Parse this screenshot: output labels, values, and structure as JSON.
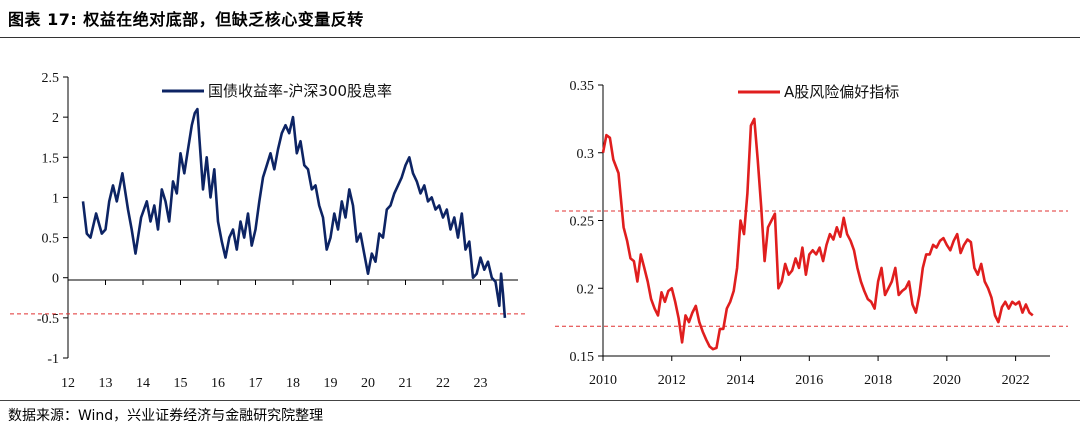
{
  "header": {
    "title": "图表 17:  权益在绝对底部，但缺乏核心变量反转"
  },
  "footer": {
    "source": "数据来源：Wind，兴业证券经济与金融研究院整理"
  },
  "colors": {
    "left_series": "#0d2464",
    "right_series": "#e01e1e",
    "reference_line": "#e03030",
    "axis": "#000000"
  },
  "chart_data": [
    {
      "type": "line",
      "title": "",
      "xlabel": "",
      "ylabel": "",
      "legend": "top-center",
      "grid": false,
      "xlim": [
        12,
        24
      ],
      "ylim": [
        -1,
        2.5
      ],
      "x_ticks": [
        "12",
        "13",
        "14",
        "15",
        "16",
        "17",
        "18",
        "19",
        "20",
        "21",
        "22",
        "23"
      ],
      "y_ticks": [
        "-1",
        "-0.5",
        "0",
        "0.5",
        "1",
        "1.5",
        "2",
        "2.5"
      ],
      "reference_lines": [
        {
          "y": -0.45
        }
      ],
      "series": [
        {
          "name": "国债收益率-沪深300股息率",
          "x": [
            12.4,
            12.5,
            12.6,
            12.75,
            12.9,
            13.0,
            13.1,
            13.2,
            13.3,
            13.45,
            13.6,
            13.7,
            13.8,
            13.95,
            14.1,
            14.2,
            14.3,
            14.4,
            14.5,
            14.6,
            14.7,
            14.8,
            14.9,
            15.0,
            15.1,
            15.2,
            15.3,
            15.38,
            15.45,
            15.5,
            15.6,
            15.7,
            15.8,
            15.9,
            16.0,
            16.1,
            16.2,
            16.3,
            16.4,
            16.5,
            16.6,
            16.7,
            16.8,
            16.9,
            17.0,
            17.1,
            17.2,
            17.3,
            17.4,
            17.5,
            17.6,
            17.7,
            17.8,
            17.9,
            18.0,
            18.1,
            18.2,
            18.3,
            18.4,
            18.5,
            18.6,
            18.7,
            18.8,
            18.9,
            19.0,
            19.1,
            19.2,
            19.3,
            19.4,
            19.5,
            19.6,
            19.7,
            19.8,
            19.9,
            20.0,
            20.1,
            20.2,
            20.3,
            20.4,
            20.5,
            20.6,
            20.7,
            20.8,
            20.9,
            21.0,
            21.1,
            21.2,
            21.3,
            21.4,
            21.5,
            21.6,
            21.7,
            21.8,
            21.9,
            22.0,
            22.1,
            22.2,
            22.3,
            22.4,
            22.5,
            22.6,
            22.7,
            22.8,
            22.9,
            23.0,
            23.1,
            23.2,
            23.3,
            23.4,
            23.5,
            23.55,
            23.6,
            23.65
          ],
          "values": [
            0.95,
            0.55,
            0.5,
            0.8,
            0.55,
            0.6,
            0.95,
            1.15,
            0.95,
            1.3,
            0.85,
            0.6,
            0.3,
            0.75,
            0.95,
            0.7,
            0.9,
            0.6,
            1.1,
            0.95,
            0.7,
            1.2,
            1.05,
            1.55,
            1.3,
            1.6,
            1.9,
            2.05,
            2.1,
            1.75,
            1.1,
            1.5,
            1.0,
            1.35,
            0.7,
            0.45,
            0.25,
            0.5,
            0.6,
            0.35,
            0.7,
            0.5,
            0.8,
            0.4,
            0.6,
            0.95,
            1.25,
            1.4,
            1.55,
            1.35,
            1.6,
            1.8,
            1.9,
            1.8,
            2.0,
            1.55,
            1.7,
            1.4,
            1.35,
            1.1,
            1.15,
            0.9,
            0.75,
            0.35,
            0.5,
            0.8,
            0.6,
            0.95,
            0.75,
            1.1,
            0.9,
            0.45,
            0.55,
            0.3,
            0.05,
            0.3,
            0.2,
            0.55,
            0.5,
            0.85,
            0.9,
            1.05,
            1.15,
            1.25,
            1.4,
            1.5,
            1.3,
            1.2,
            1.05,
            1.15,
            0.95,
            1.0,
            0.85,
            0.9,
            0.75,
            0.85,
            0.6,
            0.75,
            0.5,
            0.8,
            0.35,
            0.45,
            0.0,
            0.05,
            0.25,
            0.1,
            0.2,
            0.0,
            -0.05,
            -0.35,
            0.05,
            -0.2,
            -0.5
          ]
        }
      ]
    },
    {
      "type": "line",
      "title": "",
      "xlabel": "",
      "ylabel": "",
      "legend": "top-center",
      "grid": false,
      "xlim": [
        2010,
        2023
      ],
      "ylim": [
        0.15,
        0.35
      ],
      "x_ticks": [
        "2010",
        "2012",
        "2014",
        "2016",
        "2018",
        "2020",
        "2022"
      ],
      "y_ticks": [
        "0.15",
        "0.2",
        "0.25",
        "0.3",
        "0.35"
      ],
      "reference_lines": [
        {
          "y": 0.257
        },
        {
          "y": 0.172
        }
      ],
      "series": [
        {
          "name": "A股风险偏好指标",
          "x": [
            2010.0,
            2010.1,
            2010.2,
            2010.3,
            2010.45,
            2010.6,
            2010.7,
            2010.8,
            2010.9,
            2011.0,
            2011.1,
            2011.2,
            2011.3,
            2011.4,
            2011.5,
            2011.6,
            2011.7,
            2011.8,
            2011.9,
            2012.0,
            2012.1,
            2012.2,
            2012.3,
            2012.4,
            2012.5,
            2012.6,
            2012.7,
            2012.8,
            2012.9,
            2013.0,
            2013.1,
            2013.2,
            2013.3,
            2013.4,
            2013.5,
            2013.6,
            2013.7,
            2013.8,
            2013.9,
            2014.0,
            2014.1,
            2014.2,
            2014.3,
            2014.4,
            2014.5,
            2014.6,
            2014.7,
            2014.8,
            2014.9,
            2015.0,
            2015.1,
            2015.2,
            2015.3,
            2015.4,
            2015.5,
            2015.6,
            2015.7,
            2015.8,
            2015.9,
            2016.0,
            2016.1,
            2016.2,
            2016.3,
            2016.4,
            2016.5,
            2016.6,
            2016.7,
            2016.8,
            2016.9,
            2017.0,
            2017.1,
            2017.2,
            2017.3,
            2017.4,
            2017.5,
            2017.6,
            2017.7,
            2017.8,
            2017.9,
            2018.0,
            2018.1,
            2018.2,
            2018.3,
            2018.4,
            2018.5,
            2018.6,
            2018.7,
            2018.8,
            2018.9,
            2019.0,
            2019.1,
            2019.2,
            2019.3,
            2019.4,
            2019.5,
            2019.6,
            2019.7,
            2019.8,
            2019.9,
            2020.0,
            2020.1,
            2020.2,
            2020.3,
            2020.4,
            2020.5,
            2020.6,
            2020.7,
            2020.8,
            2020.9,
            2021.0,
            2021.1,
            2021.2,
            2021.3,
            2021.4,
            2021.5,
            2021.6,
            2021.7,
            2021.8,
            2021.9,
            2022.0,
            2022.1,
            2022.2,
            2022.3,
            2022.4,
            2022.5
          ],
          "values": [
            0.3,
            0.313,
            0.311,
            0.295,
            0.285,
            0.245,
            0.235,
            0.222,
            0.22,
            0.205,
            0.225,
            0.215,
            0.205,
            0.192,
            0.185,
            0.18,
            0.197,
            0.19,
            0.198,
            0.2,
            0.19,
            0.178,
            0.16,
            0.18,
            0.175,
            0.182,
            0.187,
            0.175,
            0.168,
            0.162,
            0.157,
            0.155,
            0.156,
            0.17,
            0.17,
            0.185,
            0.19,
            0.198,
            0.215,
            0.25,
            0.24,
            0.27,
            0.32,
            0.325,
            0.295,
            0.26,
            0.22,
            0.245,
            0.25,
            0.255,
            0.2,
            0.205,
            0.218,
            0.21,
            0.213,
            0.222,
            0.215,
            0.23,
            0.21,
            0.225,
            0.228,
            0.225,
            0.23,
            0.22,
            0.232,
            0.24,
            0.236,
            0.245,
            0.238,
            0.252,
            0.24,
            0.235,
            0.228,
            0.215,
            0.205,
            0.198,
            0.192,
            0.19,
            0.185,
            0.205,
            0.215,
            0.195,
            0.2,
            0.205,
            0.215,
            0.195,
            0.198,
            0.2,
            0.205,
            0.188,
            0.182,
            0.195,
            0.215,
            0.225,
            0.225,
            0.232,
            0.23,
            0.235,
            0.237,
            0.232,
            0.228,
            0.235,
            0.24,
            0.226,
            0.232,
            0.236,
            0.234,
            0.215,
            0.21,
            0.218,
            0.205,
            0.2,
            0.193,
            0.18,
            0.175,
            0.186,
            0.19,
            0.185,
            0.19,
            0.188,
            0.19,
            0.182,
            0.188,
            0.182,
            0.18
          ]
        }
      ]
    }
  ]
}
